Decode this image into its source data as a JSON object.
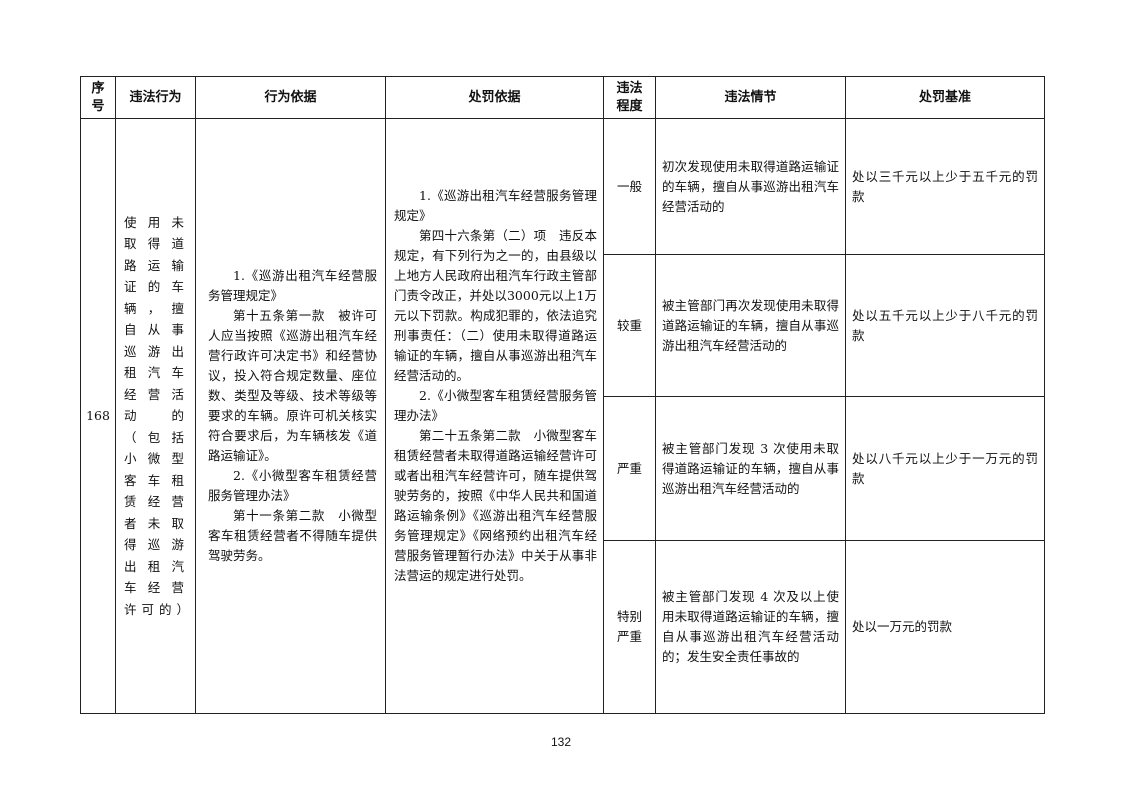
{
  "headers": [
    "序号",
    "违法行为",
    "行为依据",
    "处罚依据",
    "违法程度",
    "违法情节",
    "处罚基准"
  ],
  "row": {
    "seq": "168",
    "violation": "使用未取得道路运输证的车辆，擅自从事巡游出租汽车经营活动的（包括小微型客车租赁经营者未取得巡游出租汽车经营许可的）",
    "basis": [
      "1.《巡游出租汽车经营服务管理规定》",
      "第十五条第一款　被许可人应当按照《巡游出租汽车经营行政许可决定书》和经营协议，投入符合规定数量、座位数、类型及等级、技术等级等要求的车辆。原许可机关核实符合要求后，为车辆核发《道路运输证》。",
      "2.《小微型客车租赁经营服务管理办法》",
      "第十一条第二款　小微型客车租赁经营者不得随车提供驾驶劳务。"
    ],
    "penalty_basis": [
      "1.《巡游出租汽车经营服务管理规定》",
      "第四十六条第（二）项　违反本规定，有下列行为之一的，由县级以上地方人民政府出租汽车行政主管部门责令改正，并处以3000元以上1万元以下罚款。构成犯罪的，依法追究刑事责任：（二）使用未取得道路运输证的车辆，擅自从事巡游出租汽车经营活动的。",
      "2.《小微型客车租赁经营服务管理办法》",
      "第二十五条第二款　小微型客车租赁经营者未取得道路运输经营许可或者出租汽车经营许可，随车提供驾驶劳务的，按照《中华人民共和国道路运输条例》《巡游出租汽车经营服务管理规定》《网络预约出租汽车经营服务管理暂行办法》中关于从事非法营运的规定进行处罚。"
    ],
    "levels": [
      {
        "degree": "一般",
        "circumstance": "初次发现使用未取得道路运输证的车辆，擅自从事巡游出租汽车经营活动的",
        "standard": "处以三千元以上少于五千元的罚款"
      },
      {
        "degree": "较重",
        "circumstance": "被主管部门再次发现使用未取得道路运输证的车辆，擅自从事巡游出租汽车经营活动的",
        "standard": "处以五千元以上少于八千元的罚款"
      },
      {
        "degree": "严重",
        "circumstance": "被主管部门发现 3 次使用未取得道路运输证的车辆，擅自从事巡游出租汽车经营活动的",
        "standard": "处以八千元以上少于一万元的罚款"
      },
      {
        "degree": "特别严重",
        "circumstance": "被主管部门发现 4 次及以上使用未取得道路运输证的车辆，擅自从事巡游出租汽车经营活动的；发生安全责任事故的",
        "standard": "处以一万元的罚款"
      }
    ]
  },
  "page_number": "132"
}
